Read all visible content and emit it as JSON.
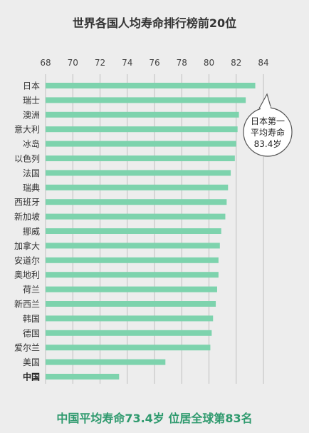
{
  "chart_data": {
    "type": "bar",
    "orientation": "horizontal",
    "title": "世界各国人均寿命排行榜前20位",
    "xlim": [
      68,
      84
    ],
    "xticks": [
      "68",
      "70",
      "72",
      "74",
      "76",
      "78",
      "80",
      "82",
      "84"
    ],
    "grid": true,
    "categories": [
      "日本",
      "瑞士",
      "澳洲",
      "意大利",
      "冰岛",
      "以色列",
      "法国",
      "瑞典",
      "西班牙",
      "新加坡",
      "挪威",
      "加拿大",
      "安道尔",
      "奥地利",
      "荷兰",
      "新西兰",
      "韩国",
      "德国",
      "爱尔兰",
      "美国",
      "中国"
    ],
    "values": [
      83.4,
      82.7,
      82.2,
      82.1,
      82.0,
      81.9,
      81.6,
      81.4,
      81.3,
      81.2,
      80.9,
      80.8,
      80.7,
      80.7,
      80.6,
      80.5,
      80.3,
      80.2,
      80.1,
      76.8,
      73.4
    ],
    "highlight_category": "中国",
    "bar_color": "#7dd3ad",
    "callout": {
      "lines": [
        "日本第一",
        "平均寿命",
        "83.4岁"
      ]
    },
    "footer": "中国平均寿命73.4岁 位居全球第83名"
  }
}
